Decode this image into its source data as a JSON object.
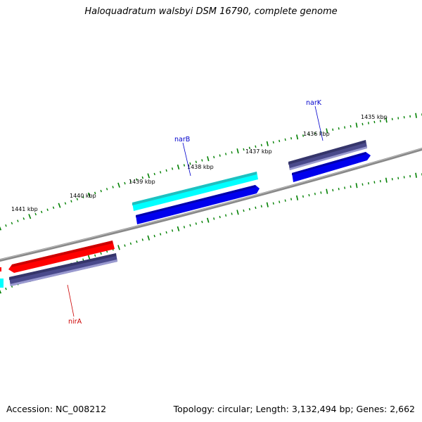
{
  "title": "Haloquadratum walsbyi DSM 16790, complete genome",
  "footer": {
    "accession": "Accession: NC_008212",
    "summary": "Topology: circular; Length: 3,132,494 bp; Genes: 2,662"
  },
  "tick_labels": [
    "1441 kbp",
    "1440 kbp",
    "1439 kbp",
    "1438 kbp",
    "1437 kbp",
    "1436 kbp",
    "1435 kbp"
  ],
  "genes": [
    {
      "name": "narB",
      "color": "#0000cc"
    },
    {
      "name": "narK",
      "color": "#0000cc"
    },
    {
      "name": "nirA",
      "color": "#cc0000"
    }
  ],
  "colors": {
    "backbone": "#888888",
    "ticks": "#008000",
    "cyan_feature": "#00ffff",
    "blue_feature": "#0000ee",
    "red_feature": "#ff0000",
    "slate_feature": "#4a4a8c"
  }
}
